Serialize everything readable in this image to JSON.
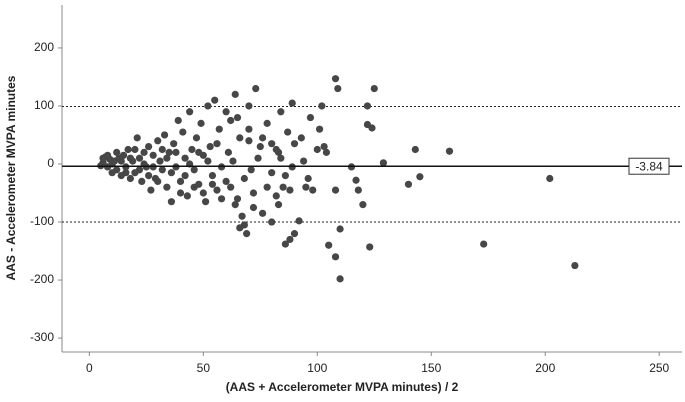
{
  "chart_data": {
    "type": "scatter",
    "xlabel": "(AAS + Accelerometer MVPA minutes) / 2",
    "ylabel": "AAS - Accelerometer MVPA minutes",
    "xlim": [
      -12,
      260
    ],
    "xticks": [
      0,
      50,
      100,
      150,
      200,
      250
    ],
    "ylim": [
      -324,
      274
    ],
    "yticks": [
      -300,
      -200,
      -100,
      0,
      100,
      200
    ],
    "mean": -3.84,
    "loa": [
      99,
      -100
    ],
    "color": "#474747",
    "x": [
      213,
      202,
      173,
      158,
      145,
      143,
      140,
      129,
      125,
      124,
      123,
      122,
      122,
      120,
      118,
      117,
      115,
      110,
      110,
      109,
      108,
      108,
      108,
      105,
      104,
      103,
      102,
      101,
      100,
      98,
      97,
      95,
      94,
      92,
      90,
      89,
      89,
      88,
      86,
      88,
      87,
      85,
      84,
      83,
      83,
      82,
      80,
      80,
      78,
      76,
      75,
      73,
      72,
      71,
      70,
      70,
      69,
      68,
      67,
      66,
      65,
      65,
      64,
      63,
      62,
      61,
      60,
      58,
      57,
      56,
      55,
      54,
      53,
      52,
      51,
      50,
      49,
      48,
      47,
      46,
      45,
      44,
      43,
      42,
      41,
      40,
      39,
      38,
      37,
      36,
      35,
      34,
      33,
      32,
      31,
      30,
      29,
      28,
      27,
      26,
      25,
      24,
      23,
      22,
      21,
      20,
      19,
      18,
      17,
      16,
      15,
      14,
      13,
      12,
      11,
      10,
      9,
      8,
      7,
      6,
      5,
      6,
      8,
      10,
      12,
      14,
      16,
      18,
      20,
      22,
      24,
      26,
      28,
      30,
      32,
      34,
      36,
      38,
      40,
      42,
      44,
      46,
      48,
      50,
      52,
      54,
      56,
      58,
      60,
      62,
      64,
      66,
      68,
      70,
      72,
      74,
      76,
      78,
      80,
      82,
      84,
      86,
      90,
      93,
      96
    ],
    "values": [
      -175,
      -25,
      -138,
      22,
      -22,
      25,
      -35,
      2,
      130,
      62,
      -143,
      100,
      68,
      -70,
      -45,
      -28,
      -5,
      -198,
      -112,
      130,
      147,
      -45,
      -160,
      -140,
      20,
      30,
      100,
      60,
      25,
      -45,
      80,
      -40,
      5,
      -98,
      -120,
      -5,
      105,
      -130,
      -138,
      -45,
      55,
      -40,
      90,
      -70,
      20,
      25,
      -100,
      -15,
      70,
      45,
      30,
      130,
      -75,
      -10,
      100,
      40,
      -120,
      -105,
      -90,
      -110,
      80,
      -60,
      120,
      5,
      -40,
      20,
      90,
      -5,
      60,
      -45,
      110,
      -20,
      30,
      100,
      -65,
      15,
      70,
      -35,
      45,
      -10,
      25,
      90,
      -55,
      10,
      55,
      -30,
      75,
      -5,
      35,
      -65,
      20,
      -40,
      50,
      -10,
      5,
      40,
      -25,
      15,
      -45,
      30,
      -5,
      20,
      -30,
      10,
      45,
      -15,
      5,
      -25,
      25,
      -5,
      15,
      -20,
      10,
      -10,
      5,
      -15,
      8,
      -5,
      12,
      2,
      -3,
      10,
      15,
      0,
      20,
      5,
      -15,
      10,
      25,
      -10,
      0,
      -20,
      -5,
      -30,
      25,
      10,
      -15,
      20,
      -50,
      -20,
      0,
      -40,
      20,
      -50,
      5,
      -35,
      35,
      -60,
      -30,
      75,
      -70,
      45,
      -25,
      60,
      -50,
      10,
      -85,
      -40,
      35,
      -55,
      10,
      -20,
      35,
      45,
      -25
    ]
  }
}
